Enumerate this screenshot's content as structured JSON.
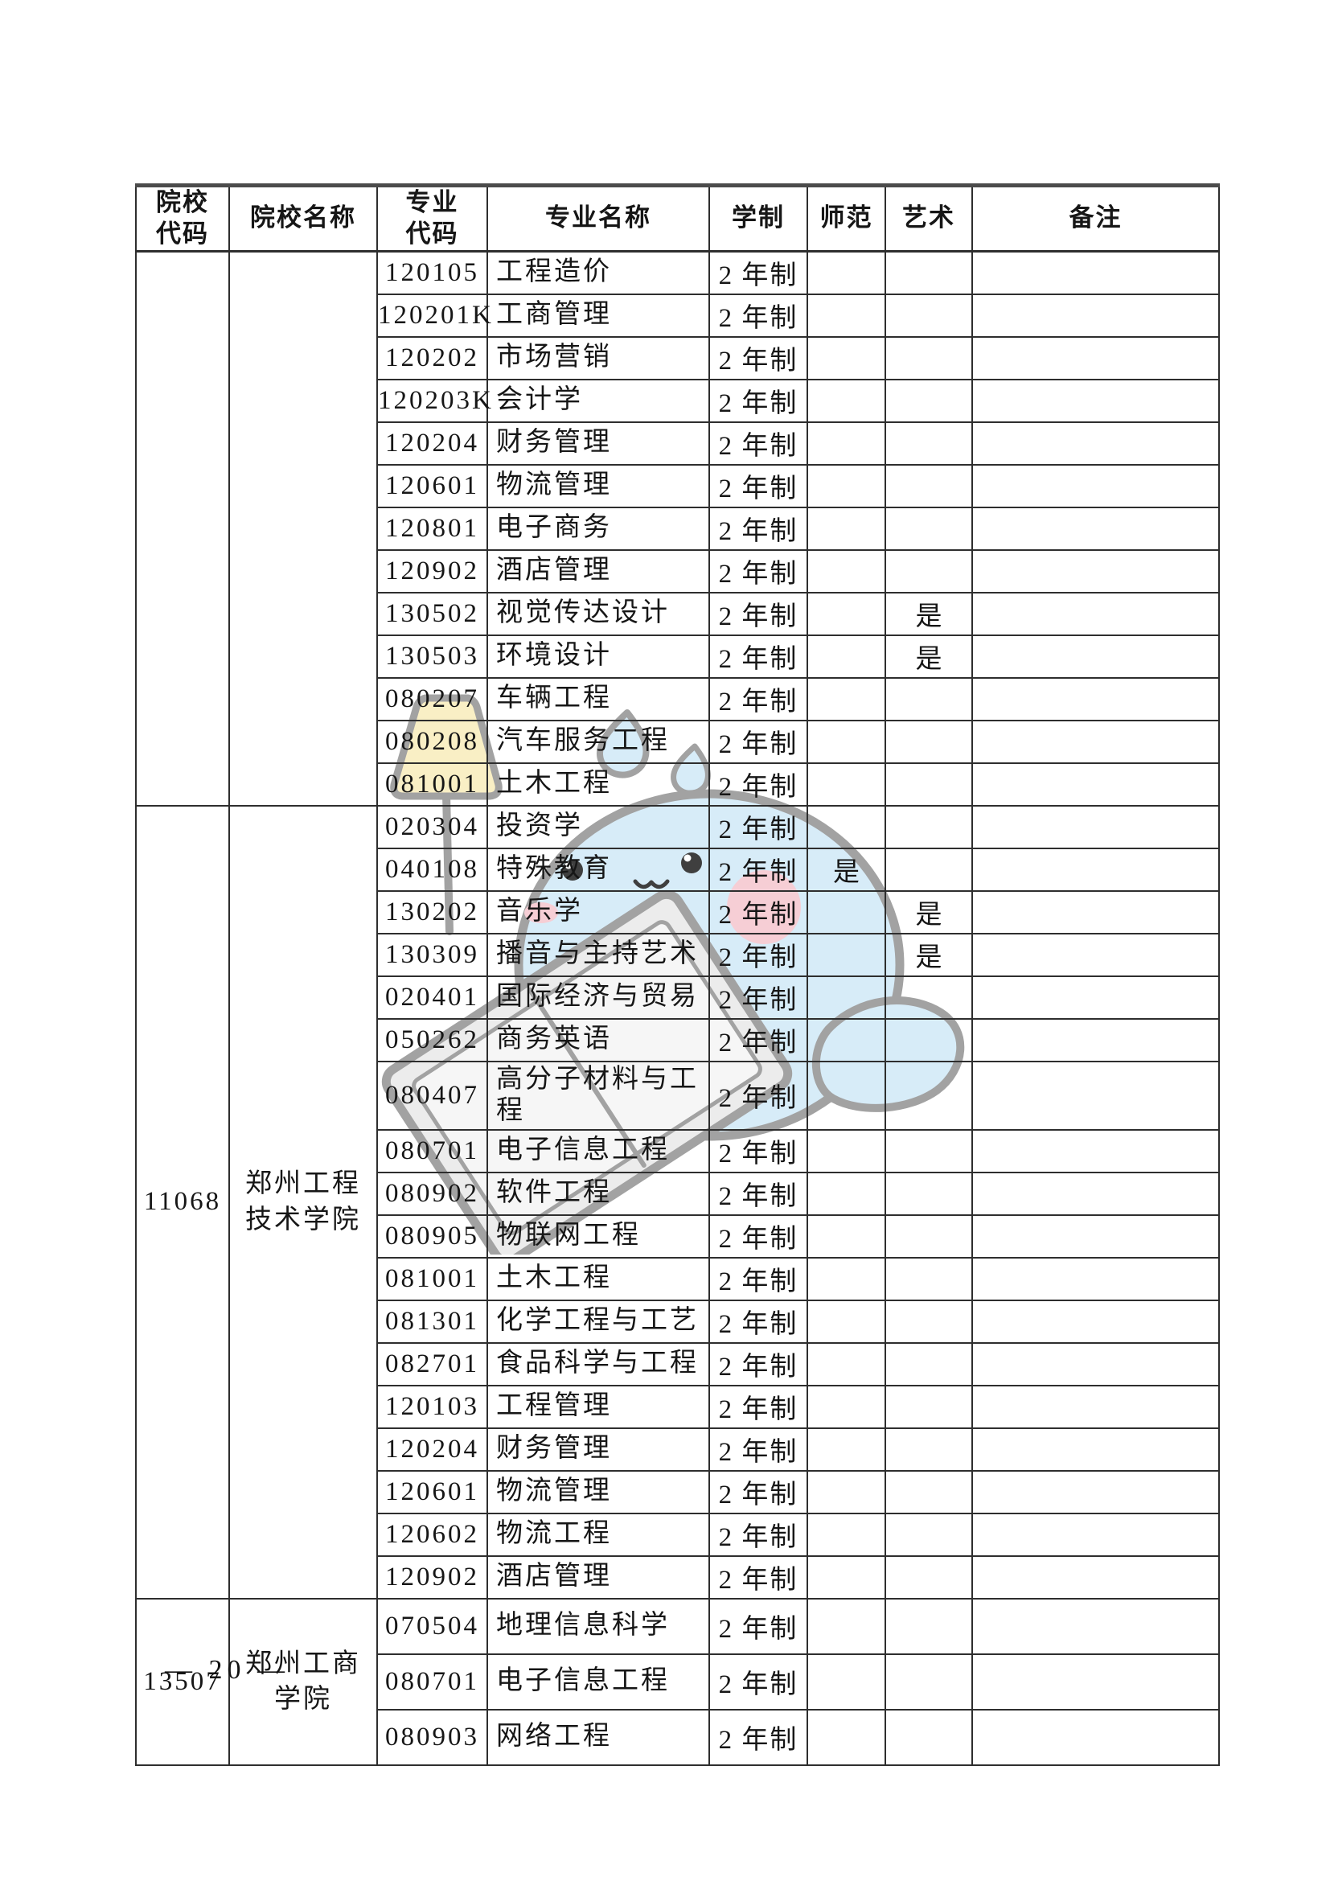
{
  "page": {
    "footer": "— 20 —",
    "page_number": "20"
  },
  "table": {
    "columns": [
      {
        "key": "school_code",
        "label": "院校\n代码"
      },
      {
        "key": "school_name",
        "label": "院校名称"
      },
      {
        "key": "major_code",
        "label": "专业\n代码"
      },
      {
        "key": "major_name",
        "label": "专业名称"
      },
      {
        "key": "duration",
        "label": "学制"
      },
      {
        "key": "normal",
        "label": "师范"
      },
      {
        "key": "art",
        "label": "艺术"
      },
      {
        "key": "remark",
        "label": "备注"
      }
    ],
    "groups": [
      {
        "school_code": "",
        "school_name": "",
        "majors": [
          {
            "code": "120105",
            "name": "工程造价",
            "duration": "2 年制",
            "normal": "",
            "art": "",
            "remark": ""
          },
          {
            "code": "120201K",
            "name": "工商管理",
            "duration": "2 年制",
            "normal": "",
            "art": "",
            "remark": ""
          },
          {
            "code": "120202",
            "name": "市场营销",
            "duration": "2 年制",
            "normal": "",
            "art": "",
            "remark": ""
          },
          {
            "code": "120203K",
            "name": "会计学",
            "duration": "2 年制",
            "normal": "",
            "art": "",
            "remark": ""
          },
          {
            "code": "120204",
            "name": "财务管理",
            "duration": "2 年制",
            "normal": "",
            "art": "",
            "remark": ""
          },
          {
            "code": "120601",
            "name": "物流管理",
            "duration": "2 年制",
            "normal": "",
            "art": "",
            "remark": ""
          },
          {
            "code": "120801",
            "name": "电子商务",
            "duration": "2 年制",
            "normal": "",
            "art": "",
            "remark": ""
          },
          {
            "code": "120902",
            "name": "酒店管理",
            "duration": "2 年制",
            "normal": "",
            "art": "",
            "remark": ""
          },
          {
            "code": "130502",
            "name": "视觉传达设计",
            "duration": "2 年制",
            "normal": "",
            "art": "是",
            "remark": ""
          },
          {
            "code": "130503",
            "name": "环境设计",
            "duration": "2 年制",
            "normal": "",
            "art": "是",
            "remark": ""
          },
          {
            "code": "080207",
            "name": "车辆工程",
            "duration": "2 年制",
            "normal": "",
            "art": "",
            "remark": ""
          },
          {
            "code": "080208",
            "name": "汽车服务工程",
            "duration": "2 年制",
            "normal": "",
            "art": "",
            "remark": ""
          },
          {
            "code": "081001",
            "name": "土木工程",
            "duration": "2 年制",
            "normal": "",
            "art": "",
            "remark": ""
          }
        ]
      },
      {
        "school_code": "11068",
        "school_name": "郑州工程技术学院",
        "majors": [
          {
            "code": "020304",
            "name": "投资学",
            "duration": "2 年制",
            "normal": "",
            "art": "",
            "remark": ""
          },
          {
            "code": "040108",
            "name": "特殊教育",
            "duration": "2 年制",
            "normal": "是",
            "art": "",
            "remark": ""
          },
          {
            "code": "130202",
            "name": "音乐学",
            "duration": "2 年制",
            "normal": "",
            "art": "是",
            "remark": ""
          },
          {
            "code": "130309",
            "name": "播音与主持艺术",
            "duration": "2 年制",
            "normal": "",
            "art": "是",
            "remark": ""
          },
          {
            "code": "020401",
            "name": "国际经济与贸易",
            "duration": "2 年制",
            "normal": "",
            "art": "",
            "remark": ""
          },
          {
            "code": "050262",
            "name": "商务英语",
            "duration": "2 年制",
            "normal": "",
            "art": "",
            "remark": ""
          },
          {
            "code": "080407",
            "name": "高分子材料与工程",
            "duration": "2 年制",
            "normal": "",
            "art": "",
            "remark": ""
          },
          {
            "code": "080701",
            "name": "电子信息工程",
            "duration": "2 年制",
            "normal": "",
            "art": "",
            "remark": ""
          },
          {
            "code": "080902",
            "name": "软件工程",
            "duration": "2 年制",
            "normal": "",
            "art": "",
            "remark": ""
          },
          {
            "code": "080905",
            "name": "物联网工程",
            "duration": "2 年制",
            "normal": "",
            "art": "",
            "remark": ""
          },
          {
            "code": "081001",
            "name": "土木工程",
            "duration": "2 年制",
            "normal": "",
            "art": "",
            "remark": ""
          },
          {
            "code": "081301",
            "name": "化学工程与工艺",
            "duration": "2 年制",
            "normal": "",
            "art": "",
            "remark": ""
          },
          {
            "code": "082701",
            "name": "食品科学与工程",
            "duration": "2 年制",
            "normal": "",
            "art": "",
            "remark": ""
          },
          {
            "code": "120103",
            "name": "工程管理",
            "duration": "2 年制",
            "normal": "",
            "art": "",
            "remark": ""
          },
          {
            "code": "120204",
            "name": "财务管理",
            "duration": "2 年制",
            "normal": "",
            "art": "",
            "remark": ""
          },
          {
            "code": "120601",
            "name": "物流管理",
            "duration": "2 年制",
            "normal": "",
            "art": "",
            "remark": ""
          },
          {
            "code": "120602",
            "name": "物流工程",
            "duration": "2 年制",
            "normal": "",
            "art": "",
            "remark": ""
          },
          {
            "code": "120902",
            "name": "酒店管理",
            "duration": "2 年制",
            "normal": "",
            "art": "",
            "remark": ""
          }
        ]
      },
      {
        "school_code": "13507",
        "school_name": "郑州工商学院",
        "majors": [
          {
            "code": "070504",
            "name": "地理信息科学",
            "duration": "2 年制",
            "normal": "",
            "art": "",
            "remark": ""
          },
          {
            "code": "080701",
            "name": "电子信息工程",
            "duration": "2 年制",
            "normal": "",
            "art": "",
            "remark": ""
          },
          {
            "code": "080903",
            "name": "网络工程",
            "duration": "2 年制",
            "normal": "",
            "art": "",
            "remark": ""
          }
        ]
      }
    ]
  },
  "watermark": {
    "outline": "#a2a2a2",
    "body_blue": "#d7ecf8",
    "lamp_yellow": "#f9efc5",
    "cheek_pink": "#f6ced5",
    "book_grey": "#ececec",
    "page_grey": "#f6f6f6",
    "eye": "#3f3f3f",
    "white": "#ffffff"
  }
}
